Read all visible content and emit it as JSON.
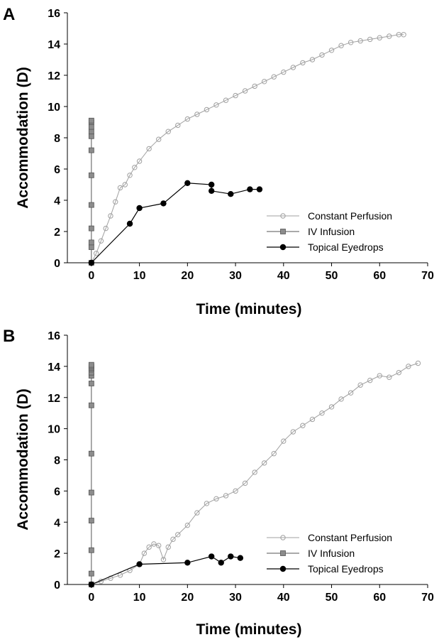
{
  "colors": {
    "constant_perfusion": "#a0a0a0",
    "iv_infusion_fill": "#8c8c8c",
    "iv_infusion_line": "#555555",
    "topical_eyedrops": "#000000",
    "axis": "#000000"
  },
  "chart_data": [
    {
      "panel": "A",
      "type": "scatter",
      "xlabel": "Time (minutes)",
      "ylabel": "Accommodation (D)",
      "xlim": [
        -5,
        70
      ],
      "ylim": [
        0,
        16
      ],
      "x_ticks": [
        0,
        10,
        20,
        30,
        40,
        50,
        60,
        70
      ],
      "y_ticks": [
        0,
        2,
        4,
        6,
        8,
        10,
        12,
        14,
        16
      ],
      "grid": false,
      "legend": {
        "position": "lower-right",
        "entries": [
          "Constant Perfusion",
          "IV Infusion",
          "Topical Eyedrops"
        ]
      },
      "series": [
        {
          "name": "Constant Perfusion",
          "marker": "open-circle",
          "x": [
            0,
            1,
            2,
            3,
            4,
            5,
            6,
            7,
            8,
            9,
            10,
            12,
            14,
            16,
            18,
            20,
            22,
            24,
            26,
            28,
            30,
            32,
            34,
            36,
            38,
            40,
            42,
            44,
            46,
            48,
            50,
            52,
            54,
            56,
            58,
            60,
            62,
            64,
            65
          ],
          "y": [
            0,
            0.6,
            1.4,
            2.2,
            3.0,
            3.9,
            4.8,
            5.0,
            5.6,
            6.1,
            6.5,
            7.3,
            7.9,
            8.4,
            8.8,
            9.2,
            9.5,
            9.8,
            10.1,
            10.4,
            10.7,
            11.0,
            11.3,
            11.6,
            11.9,
            12.2,
            12.5,
            12.8,
            13.0,
            13.3,
            13.6,
            13.9,
            14.1,
            14.2,
            14.3,
            14.4,
            14.5,
            14.6,
            14.6
          ]
        },
        {
          "name": "IV Infusion",
          "marker": "filled-square",
          "x": [
            0,
            0,
            0,
            0,
            0,
            0,
            0,
            0,
            0,
            0,
            0,
            0
          ],
          "y": [
            0,
            1.0,
            1.3,
            2.2,
            3.7,
            5.6,
            7.2,
            8.1,
            8.4,
            8.7,
            9.0,
            9.1
          ]
        },
        {
          "name": "Topical Eyedrops",
          "marker": "filled-circle",
          "x": [
            0,
            8,
            10,
            15,
            20,
            25,
            25,
            29,
            33,
            35
          ],
          "y": [
            0,
            2.5,
            3.5,
            3.8,
            5.1,
            5.0,
            4.6,
            4.4,
            4.7,
            4.7
          ]
        }
      ]
    },
    {
      "panel": "B",
      "type": "scatter",
      "xlabel": "Time (minutes)",
      "ylabel": "Accommodation (D)",
      "xlim": [
        -5,
        70
      ],
      "ylim": [
        0,
        16
      ],
      "x_ticks": [
        0,
        10,
        20,
        30,
        40,
        50,
        60,
        70
      ],
      "y_ticks": [
        0,
        2,
        4,
        6,
        8,
        10,
        12,
        14,
        16
      ],
      "grid": false,
      "legend": {
        "position": "lower-right",
        "entries": [
          "Constant Perfusion",
          "IV Infusion",
          "Topical Eyedrops"
        ]
      },
      "series": [
        {
          "name": "Constant Perfusion",
          "marker": "open-circle",
          "x": [
            0,
            2,
            4,
            6,
            8,
            10,
            11,
            12,
            13,
            14,
            15,
            16,
            17,
            18,
            20,
            22,
            24,
            26,
            28,
            30,
            32,
            34,
            36,
            38,
            40,
            42,
            44,
            46,
            48,
            50,
            52,
            54,
            56,
            58,
            60,
            62,
            64,
            66,
            68
          ],
          "y": [
            0,
            0.2,
            0.4,
            0.6,
            0.9,
            1.3,
            2.0,
            2.4,
            2.6,
            2.5,
            1.6,
            2.4,
            2.9,
            3.2,
            3.8,
            4.6,
            5.2,
            5.5,
            5.7,
            6.0,
            6.5,
            7.2,
            7.8,
            8.4,
            9.2,
            9.8,
            10.2,
            10.6,
            11.0,
            11.4,
            11.9,
            12.3,
            12.8,
            13.1,
            13.4,
            13.3,
            13.6,
            14.0,
            14.2
          ]
        },
        {
          "name": "IV Infusion",
          "marker": "filled-square",
          "x": [
            0,
            0,
            0,
            0,
            0,
            0,
            0,
            0,
            0,
            0,
            0,
            0,
            0,
            0
          ],
          "y": [
            0,
            0.7,
            2.2,
            4.1,
            5.9,
            8.4,
            11.5,
            12.9,
            13.4,
            13.6,
            13.8,
            13.9,
            14.0,
            14.1
          ]
        },
        {
          "name": "Topical Eyedrops",
          "marker": "filled-circle",
          "x": [
            0,
            10,
            20,
            25,
            27,
            29,
            31
          ],
          "y": [
            0,
            1.3,
            1.4,
            1.8,
            1.4,
            1.8,
            1.7
          ]
        }
      ]
    }
  ]
}
